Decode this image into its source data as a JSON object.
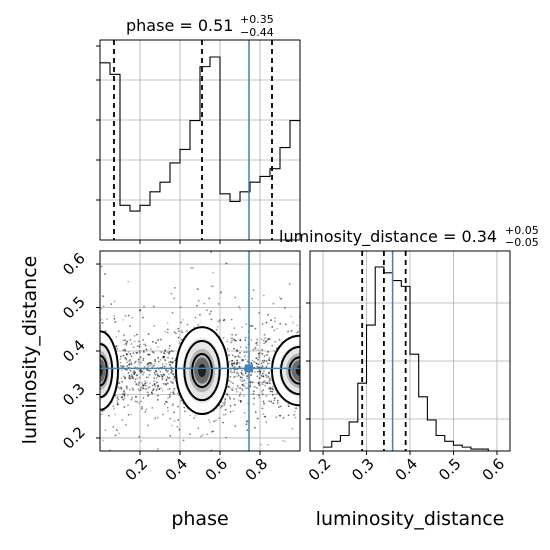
{
  "chart_data": [
    {
      "type": "histogram",
      "panel": "phase-marginal",
      "title": {
        "main": "phase = 0.51",
        "sup": "+0.35",
        "sub": "−0.44"
      },
      "xlim": [
        0.0,
        1.0
      ],
      "bin_edges": [
        0.0,
        0.05,
        0.1,
        0.15,
        0.2,
        0.25,
        0.3,
        0.35,
        0.4,
        0.45,
        0.5,
        0.55,
        0.6,
        0.65,
        0.7,
        0.75,
        0.8,
        0.85,
        0.9,
        0.95,
        1.0
      ],
      "counts": [
        0.92,
        0.86,
        0.18,
        0.15,
        0.18,
        0.25,
        0.3,
        0.4,
        0.47,
        0.62,
        0.9,
        0.95,
        0.24,
        0.2,
        0.25,
        0.3,
        0.33,
        0.37,
        0.48,
        0.62
      ],
      "quantiles": [
        0.07,
        0.51,
        0.86
      ],
      "truth": 0.745
    },
    {
      "type": "histogram",
      "panel": "luminosity-distance-marginal",
      "title": {
        "main": "luminosity_distance = 0.34",
        "sup": "+0.05",
        "sub": "−0.05"
      },
      "xlim": [
        0.17,
        0.63
      ],
      "bin_edges": [
        0.2,
        0.22,
        0.24,
        0.26,
        0.28,
        0.3,
        0.32,
        0.34,
        0.36,
        0.38,
        0.4,
        0.42,
        0.44,
        0.46,
        0.48,
        0.5,
        0.52,
        0.54,
        0.56,
        0.58,
        0.6
      ],
      "counts": [
        0.02,
        0.05,
        0.08,
        0.15,
        0.35,
        0.65,
        0.95,
        0.92,
        0.88,
        0.85,
        0.5,
        0.28,
        0.16,
        0.08,
        0.05,
        0.03,
        0.02,
        0.01,
        0.01,
        0.0
      ],
      "quantiles": [
        0.29,
        0.34,
        0.39
      ],
      "truth": 0.36
    },
    {
      "type": "scatter-contour",
      "panel": "joint",
      "xlim": [
        0.0,
        1.0
      ],
      "ylim": [
        0.17,
        0.63
      ],
      "truth": {
        "x": 0.745,
        "y": 0.36
      },
      "density_centers": [
        {
          "x": 0.0,
          "y": 0.36,
          "weight": 1.0
        },
        {
          "x": 0.51,
          "y": 0.36,
          "weight": 1.0
        },
        {
          "x": 1.0,
          "y": 0.36,
          "weight": 0.7
        }
      ]
    }
  ],
  "axes": {
    "phase_ticks": [
      "0.2",
      "0.4",
      "0.6",
      "0.8"
    ],
    "phase_tick_values": [
      0.2,
      0.4,
      0.6,
      0.8
    ],
    "ld_ticks": [
      "0.2",
      "0.3",
      "0.4",
      "0.5",
      "0.6"
    ],
    "ld_tick_values": [
      0.2,
      0.3,
      0.4,
      0.5,
      0.6
    ],
    "xlabel_phase": "phase",
    "xlabel_ld": "luminosity_distance",
    "ylabel_ld": "luminosity_distance"
  },
  "colors": {
    "truth": "#4682b4",
    "line": "#000000",
    "grid": "#b0b0b0"
  }
}
